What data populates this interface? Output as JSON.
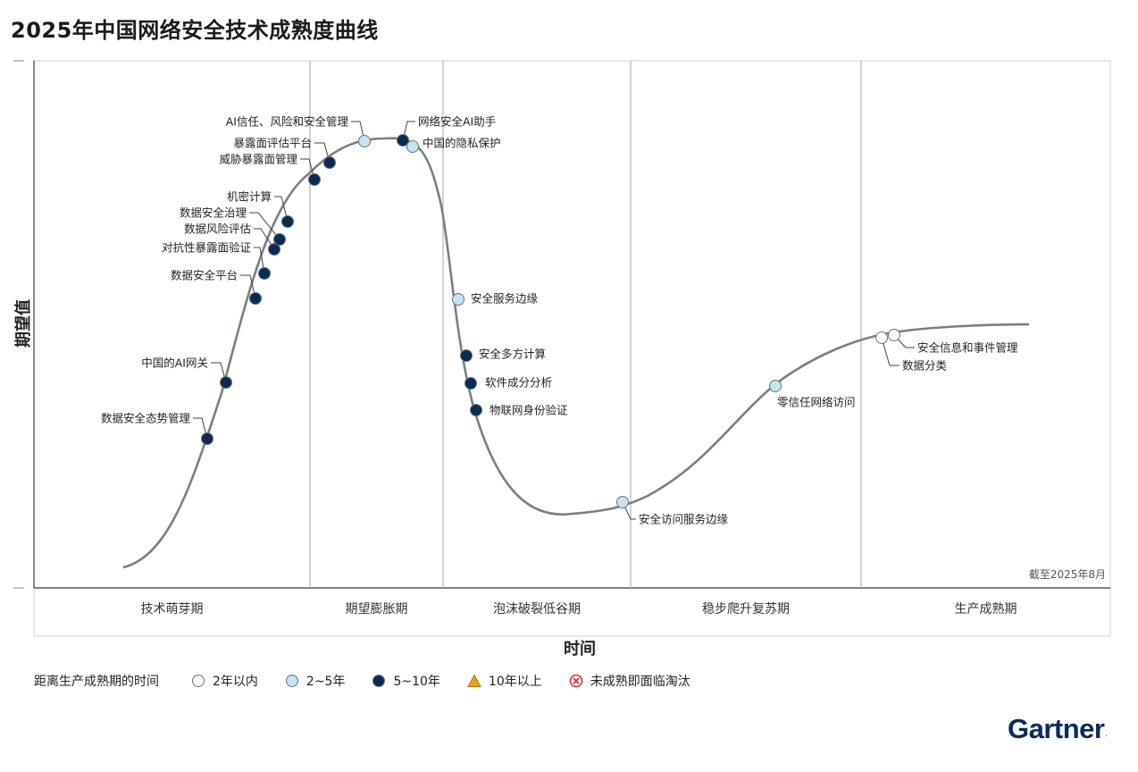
{
  "title": "2025年中国网络安全技术成熟度曲线",
  "as_of": "截至2025年8月",
  "brand": "Gartner",
  "colors": {
    "curve": "#7a7f80",
    "divider": "#b5b5b5",
    "frame": "#d0d0d0",
    "within_2": "#ffffff",
    "y2_5": "#c6e4f1",
    "y5_10": "#0d2a55",
    "over_10": "#e8a317",
    "obsolete": "#d9302c"
  },
  "legend": {
    "title": "距离生产成熟期的时间",
    "items": [
      {
        "key": "within_2",
        "label": "2年以内",
        "shape": "circle"
      },
      {
        "key": "y2_5",
        "label": "2~5年",
        "shape": "circle"
      },
      {
        "key": "y5_10",
        "label": "5~10年",
        "shape": "circle"
      },
      {
        "key": "over_10",
        "label": "10年以上",
        "shape": "triangle"
      },
      {
        "key": "obsolete",
        "label": "未成熟即面临淘汰",
        "shape": "cross-circle"
      }
    ]
  },
  "chart_data": {
    "type": "scatter",
    "title": "2025年中国网络安全技术成熟度曲线",
    "xlabel": "时间",
    "ylabel": "期望值",
    "phases": [
      "技术萌芽期",
      "期望膨胀期",
      "泡沫破裂低谷期",
      "稳步爬升复苏期",
      "生产成熟期"
    ],
    "points": [
      {
        "label": "数据安全态势管理",
        "category": "y5_10"
      },
      {
        "label": "中国的AI网关",
        "category": "y5_10"
      },
      {
        "label": "数据安全平台",
        "category": "y5_10"
      },
      {
        "label": "对抗性暴露面验证",
        "category": "y5_10"
      },
      {
        "label": "数据风险评估",
        "category": "y5_10"
      },
      {
        "label": "数据安全治理",
        "category": "y5_10"
      },
      {
        "label": "机密计算",
        "category": "y5_10"
      },
      {
        "label": "威胁暴露面管理",
        "category": "y5_10"
      },
      {
        "label": "暴露面评估平台",
        "category": "y5_10"
      },
      {
        "label": "AI信任、风险和安全管理",
        "category": "y2_5"
      },
      {
        "label": "网络安全AI助手",
        "category": "y5_10"
      },
      {
        "label": "中国的隐私保护",
        "category": "y2_5"
      },
      {
        "label": "安全服务边缘",
        "category": "y2_5"
      },
      {
        "label": "安全多方计算",
        "category": "y5_10"
      },
      {
        "label": "软件成分分析",
        "category": "y5_10"
      },
      {
        "label": "物联网身份验证",
        "category": "y5_10"
      },
      {
        "label": "安全访问服务边缘",
        "category": "y2_5"
      },
      {
        "label": "零信任网络访问",
        "category": "y2_5"
      },
      {
        "label": "数据分类",
        "category": "within_2"
      },
      {
        "label": "安全信息和事件管理",
        "category": "within_2"
      }
    ]
  }
}
